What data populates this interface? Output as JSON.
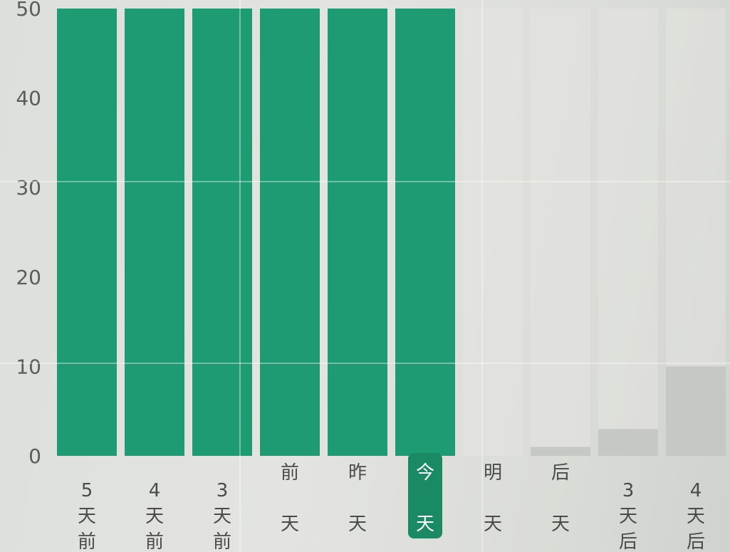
{
  "chart_data": {
    "type": "bar",
    "title": "",
    "xlabel": "",
    "ylabel": "",
    "ylim": [
      0,
      50
    ],
    "yticks": [
      0,
      10,
      20,
      30,
      40,
      50
    ],
    "categories": [
      "5天前",
      "4天前",
      "3天前",
      "前天",
      "昨天",
      "今天",
      "明天",
      "后天",
      "3天后",
      "4天后"
    ],
    "category_lines": [
      [
        "5",
        "天",
        "前"
      ],
      [
        "4",
        "天",
        "前"
      ],
      [
        "3",
        "天",
        "前"
      ],
      [
        "前",
        "天"
      ],
      [
        "昨",
        "天"
      ],
      [
        "今",
        "天"
      ],
      [
        "明",
        "天"
      ],
      [
        "后",
        "天"
      ],
      [
        "3",
        "天",
        "后"
      ],
      [
        "4",
        "天",
        "后"
      ]
    ],
    "values": [
      50,
      50,
      50,
      50,
      50,
      50,
      0,
      1,
      3,
      10
    ],
    "highlight_category": "今天",
    "grid": true,
    "colors": {
      "active_bar": "#1f9b73",
      "future_bar": "#c5c8c4",
      "track": "#e6e7e3",
      "highlight_bg": "#1a8a64"
    }
  }
}
